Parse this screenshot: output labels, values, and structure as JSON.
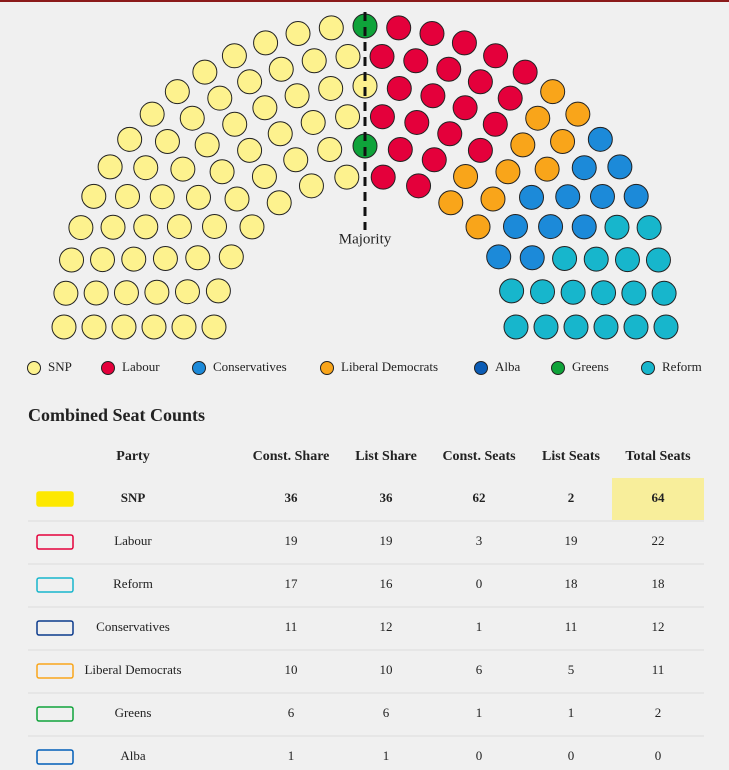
{
  "chart_data": {
    "type": "parliament",
    "annotation": "Majority",
    "series": [
      {
        "name": "SNP",
        "color": "#fdf28e",
        "values": [
          64
        ]
      },
      {
        "name": "Labour",
        "color": "#e4003b",
        "values": [
          22
        ]
      },
      {
        "name": "Conservatives",
        "color": "#1c8ad9",
        "values": [
          12
        ]
      },
      {
        "name": "Liberal Democrats",
        "color": "#f9a51a",
        "values": [
          11
        ]
      },
      {
        "name": "Alba",
        "color": "#0b5cb5",
        "values": [
          0
        ]
      },
      {
        "name": "Greens",
        "color": "#0fa33a",
        "values": [
          2
        ]
      },
      {
        "name": "Reform",
        "color": "#17b6cc",
        "values": [
          18
        ]
      }
    ]
  },
  "table": {
    "title": "Combined Seat Counts",
    "columns": [
      "Party",
      "Const. Share",
      "List Share",
      "Const. Seats",
      "List Seats",
      "Total Seats"
    ],
    "rows": [
      {
        "party": "SNP",
        "cells": [
          36,
          36,
          62,
          2,
          64
        ]
      },
      {
        "party": "Labour",
        "cells": [
          19,
          19,
          3,
          19,
          22
        ]
      },
      {
        "party": "Reform",
        "cells": [
          17,
          16,
          0,
          18,
          18
        ]
      },
      {
        "party": "Conservatives",
        "cells": [
          11,
          12,
          1,
          11,
          12
        ]
      },
      {
        "party": "Liberal Democrats",
        "cells": [
          10,
          10,
          6,
          5,
          11
        ]
      },
      {
        "party": "Greens",
        "cells": [
          6,
          6,
          1,
          1,
          2
        ]
      },
      {
        "party": "Alba",
        "cells": [
          1,
          1,
          0,
          0,
          0
        ]
      }
    ]
  }
}
